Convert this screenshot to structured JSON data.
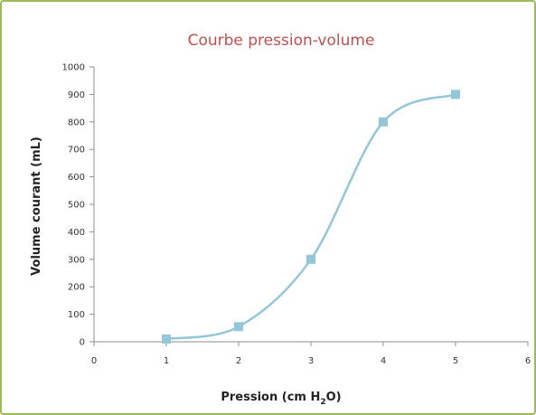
{
  "chart_data": {
    "type": "line",
    "title": "Courbe pression-volume",
    "xlabel": {
      "main": "Pression (cm H",
      "sub": "2",
      "end": "O)"
    },
    "ylabel": "Volume courant (mL)",
    "xlim": [
      0,
      6
    ],
    "ylim": [
      0,
      1000
    ],
    "xticks": [
      "0",
      "1",
      "2",
      "3",
      "4",
      "5",
      "6"
    ],
    "yticks": [
      "0",
      "100",
      "200",
      "300",
      "400",
      "500",
      "600",
      "700",
      "800",
      "900",
      "1000"
    ],
    "grid": false,
    "smooth": true,
    "series": [
      {
        "x": [
          1,
          2,
          3,
          4,
          5
        ],
        "y": [
          10,
          55,
          300,
          800,
          900
        ],
        "color": "#93c6d9",
        "marker": "square"
      }
    ]
  }
}
